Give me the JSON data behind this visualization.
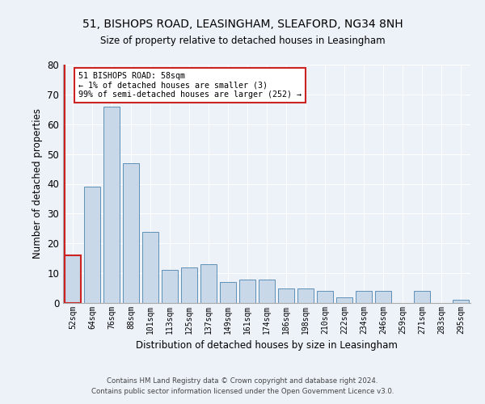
{
  "title1": "51, BISHOPS ROAD, LEASINGHAM, SLEAFORD, NG34 8NH",
  "title2": "Size of property relative to detached houses in Leasingham",
  "xlabel": "Distribution of detached houses by size in Leasingham",
  "ylabel": "Number of detached properties",
  "categories": [
    "52sqm",
    "64sqm",
    "76sqm",
    "88sqm",
    "101sqm",
    "113sqm",
    "125sqm",
    "137sqm",
    "149sqm",
    "161sqm",
    "174sqm",
    "186sqm",
    "198sqm",
    "210sqm",
    "222sqm",
    "234sqm",
    "246sqm",
    "259sqm",
    "271sqm",
    "283sqm",
    "295sqm"
  ],
  "values": [
    16,
    39,
    66,
    47,
    24,
    11,
    12,
    13,
    7,
    8,
    8,
    5,
    5,
    4,
    2,
    4,
    4,
    0,
    4,
    0,
    1
  ],
  "bar_color": "#c8d8e8",
  "bar_edge_color": "#6090b8",
  "highlight_edge_color": "#cc2222",
  "annotation_line1": "51 BISHOPS ROAD: 58sqm",
  "annotation_line2": "← 1% of detached houses are smaller (3)",
  "annotation_line3": "99% of semi-detached houses are larger (252) →",
  "annotation_box_color": "#ffffff",
  "annotation_box_edge": "#cc2222",
  "ylim": [
    0,
    80
  ],
  "yticks": [
    0,
    10,
    20,
    30,
    40,
    50,
    60,
    70,
    80
  ],
  "footer1": "Contains HM Land Registry data © Crown copyright and database right 2024.",
  "footer2": "Contains public sector information licensed under the Open Government Licence v3.0.",
  "background_color": "#edf2f9",
  "plot_background": "#edf2f9"
}
